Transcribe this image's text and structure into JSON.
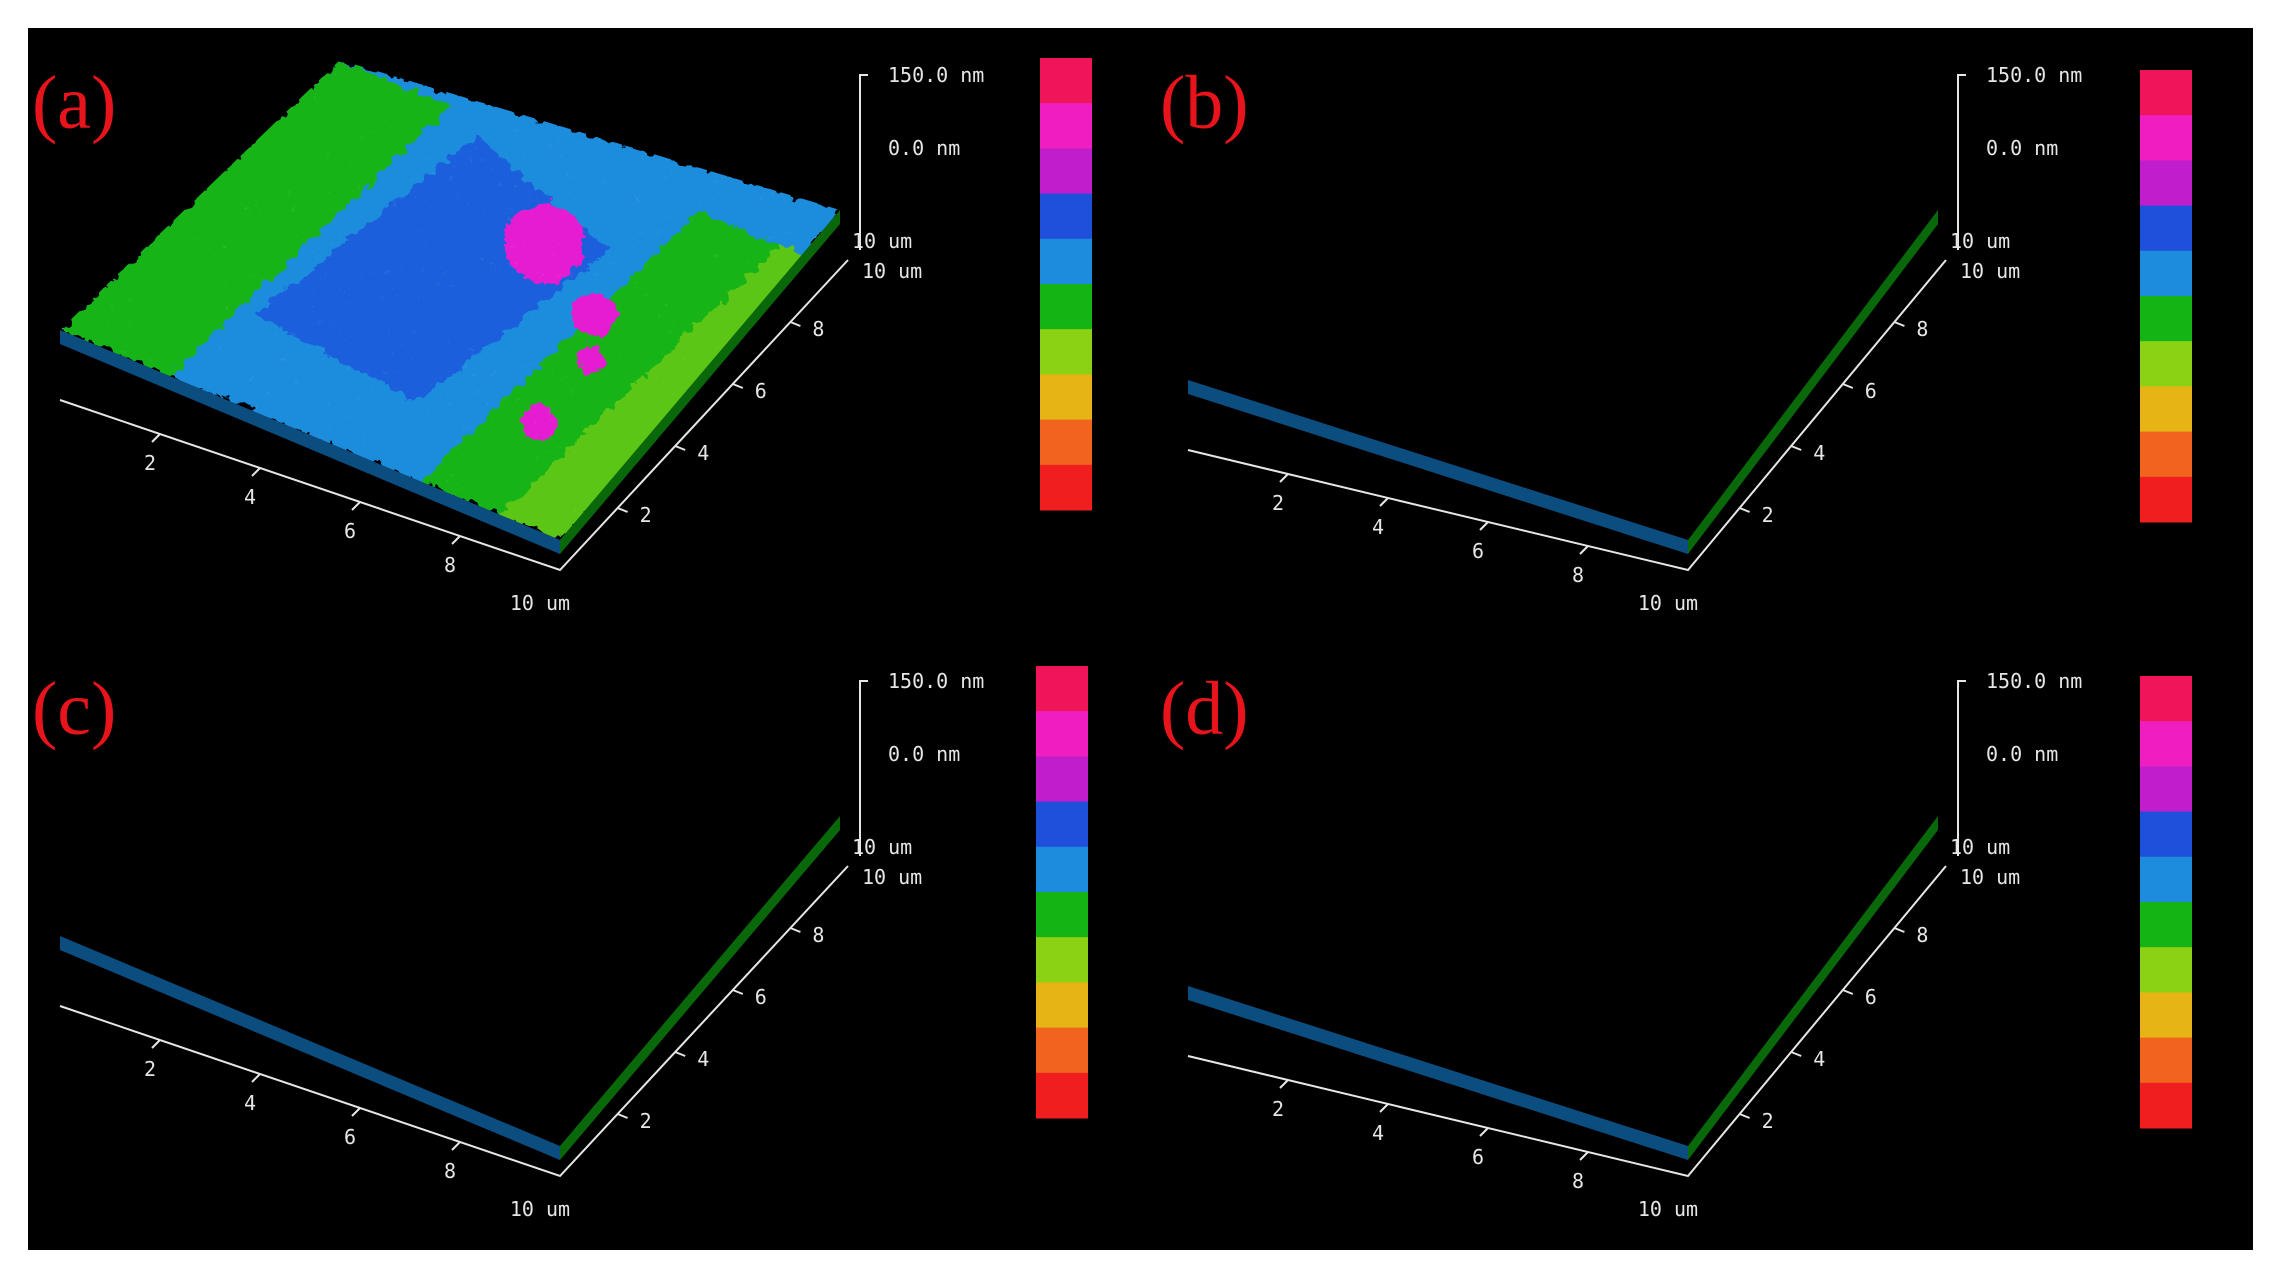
{
  "figure": {
    "background": "#000000",
    "label_color": "#e8141c",
    "axis_color": "#e6e6e6",
    "colorbar": [
      "#f0145a",
      "#f01ec0",
      "#c01ecc",
      "#1e50dc",
      "#1e8cdc",
      "#14b414",
      "#8cd214",
      "#e6b414",
      "#f0641e",
      "#f01e1e"
    ],
    "panels": [
      {
        "label": "(a)",
        "z_top": "150.0 nm",
        "z_mid": "0.0 nm",
        "z_bottom": "10 um",
        "y_end": "10 um",
        "x_end": "10 um",
        "x_ticks": [
          "2",
          "4",
          "6",
          "8"
        ],
        "y_ticks": [
          "2",
          "4",
          "6",
          "8"
        ],
        "surface": "rough",
        "peak_color": "#e61ed2"
      },
      {
        "label": "(b)",
        "z_top": "150.0 nm",
        "z_mid": "0.0 nm",
        "z_bottom": "10 um",
        "y_end": "10 um",
        "x_end": "10 um",
        "x_ticks": [
          "2",
          "4",
          "6",
          "8"
        ],
        "y_ticks": [
          "2",
          "4",
          "6",
          "8"
        ],
        "surface": "striped",
        "peak_color": "#d828c8"
      },
      {
        "label": "(c)",
        "z_top": "150.0 nm",
        "z_mid": "0.0 nm",
        "z_bottom": "10 um",
        "y_end": "10 um",
        "x_end": "10 um",
        "x_ticks": [
          "2",
          "4",
          "6",
          "8"
        ],
        "y_ticks": [
          "2",
          "4",
          "6",
          "8"
        ],
        "surface": "striped",
        "peak_color": "#1e8cdc"
      },
      {
        "label": "(d)",
        "z_top": "150.0 nm",
        "z_mid": "0.0 nm",
        "z_bottom": "10 um",
        "y_end": "10 um",
        "x_end": "10 um",
        "x_ticks": [
          "2",
          "4",
          "6",
          "8"
        ],
        "y_ticks": [
          "2",
          "4",
          "6",
          "8"
        ],
        "surface": "striped",
        "peak_color": "#c81ec8"
      }
    ]
  }
}
